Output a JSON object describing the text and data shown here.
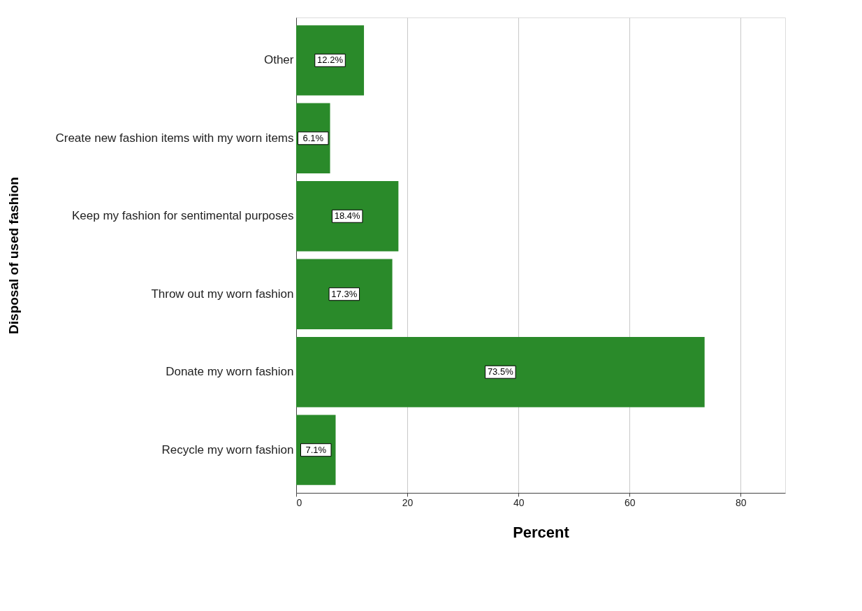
{
  "chart_data": {
    "type": "bar",
    "orientation": "horizontal",
    "ylabel": "Disposal of used fashion",
    "xlabel": "Percent",
    "categories": [
      "Other",
      "Create new fashion items with my worn items",
      "Keep my fashion for sentimental purposes",
      "Throw out my worn fashion",
      "Donate my worn fashion",
      "Recycle my worn fashion"
    ],
    "values": [
      12.2,
      6.1,
      18.4,
      17.3,
      73.5,
      7.1
    ],
    "value_labels": [
      "12.2%",
      "6.1%",
      "18.4%",
      "17.3%",
      "73.5%",
      "7.1%"
    ],
    "color": "#2a8a2a",
    "xlim": [
      0,
      88
    ],
    "xticks": [
      0,
      20,
      40,
      60,
      80
    ],
    "grid": "x"
  }
}
